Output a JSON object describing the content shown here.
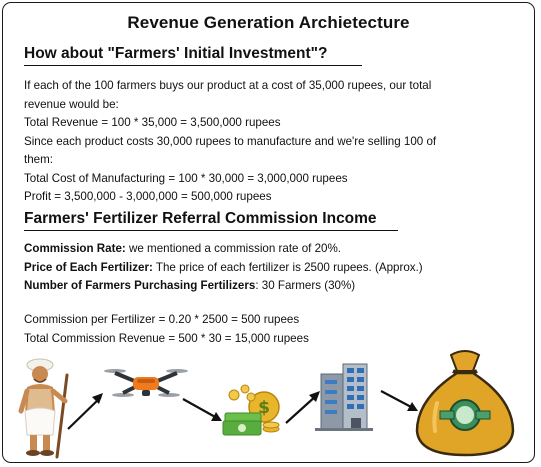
{
  "title": "Revenue Generation Archietecture",
  "section_investment": {
    "heading": "How about \"Farmers' Initial Investment\"?",
    "lines": [
      "If each of the 100 farmers buys our product at a cost of 35,000 rupees, our total",
      "revenue would be:",
      "Total Revenue = 100 * 35,000 = 3,500,000 rupees",
      "Since each product costs 30,000 rupees to manufacture and we're selling 100 of",
      "them:",
      "Total Cost of Manufacturing = 100 * 30,000 = 3,000,000 rupees",
      "Profit = 3,500,000 - 3,000,000 = 500,000 rupees"
    ]
  },
  "section_commission": {
    "heading": "Farmers' Fertilizer Referral Commission Income",
    "facts": [
      {
        "label": "Commission Rate:",
        "text": " we mentioned a commission rate of 20%."
      },
      {
        "label": "Price of Each Fertilizer:",
        "text": " The price of each fertilizer is 2500 rupees. (Approx.)"
      },
      {
        "label": "Number of Farmers Purchasing Fertilizers",
        "text": ": 30 Farmers (30%)"
      }
    ],
    "calc_lines": [
      "Commission per Fertilizer = 0.20 * 2500 = 500 rupees",
      "Total Commission Revenue = 500 * 30 = 15,000 rupees"
    ]
  },
  "flow_icons": [
    "farmer-icon",
    "drone-icon",
    "money-stack-icon",
    "building-icon",
    "money-bag-icon"
  ],
  "colors": {
    "gold": "#e0a426",
    "money_green": "#49a34a",
    "drone_orange": "#f07a1e",
    "ink": "#111111"
  }
}
